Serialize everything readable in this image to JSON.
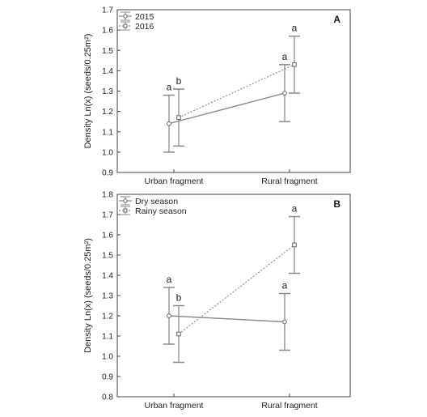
{
  "chart_data": [
    {
      "type": "line",
      "panel_label": "A",
      "ylabel": "Density Ln(x) (seeds/0.25m²)",
      "ylim": [
        0.9,
        1.7
      ],
      "yticks": [
        "0.9",
        "1.0",
        "1.1",
        "1.2",
        "1.3",
        "1.4",
        "1.5",
        "1.6",
        "1.7"
      ],
      "categories": [
        "Urban fragment",
        "Rural fragment"
      ],
      "legend_position": "top-left",
      "series": [
        {
          "name": "2015",
          "style": "solid",
          "color": "#8a8a8a",
          "values": [
            1.14,
            1.29
          ],
          "lower": [
            1.0,
            1.15
          ],
          "upper": [
            1.28,
            1.43
          ],
          "letters": [
            "a",
            "a"
          ]
        },
        {
          "name": "2016",
          "style": "dotted",
          "color": "#8a8a8a",
          "values": [
            1.17,
            1.43
          ],
          "lower": [
            1.03,
            1.29
          ],
          "upper": [
            1.31,
            1.57
          ],
          "letters": [
            "b",
            "a"
          ]
        }
      ]
    },
    {
      "type": "line",
      "panel_label": "B",
      "ylabel": "Density Ln(x) (seeds/0.25m²)",
      "ylim": [
        0.8,
        1.8
      ],
      "yticks": [
        "0.8",
        "0.9",
        "1.0",
        "1.1",
        "1.2",
        "1.3",
        "1.4",
        "1.5",
        "1.6",
        "1.7",
        "1.8"
      ],
      "categories": [
        "Urban fragment",
        "Rural fragment"
      ],
      "legend_position": "top-left",
      "series": [
        {
          "name": "Dry season",
          "style": "solid",
          "color": "#8a8a8a",
          "values": [
            1.2,
            1.17
          ],
          "lower": [
            1.06,
            1.03
          ],
          "upper": [
            1.34,
            1.31
          ],
          "letters": [
            "a",
            "a"
          ]
        },
        {
          "name": "Rainy season",
          "style": "dotted",
          "color": "#8a8a8a",
          "values": [
            1.11,
            1.55
          ],
          "lower": [
            0.97,
            1.41
          ],
          "upper": [
            1.25,
            1.69
          ],
          "letters": [
            "b",
            "a"
          ]
        }
      ]
    }
  ]
}
